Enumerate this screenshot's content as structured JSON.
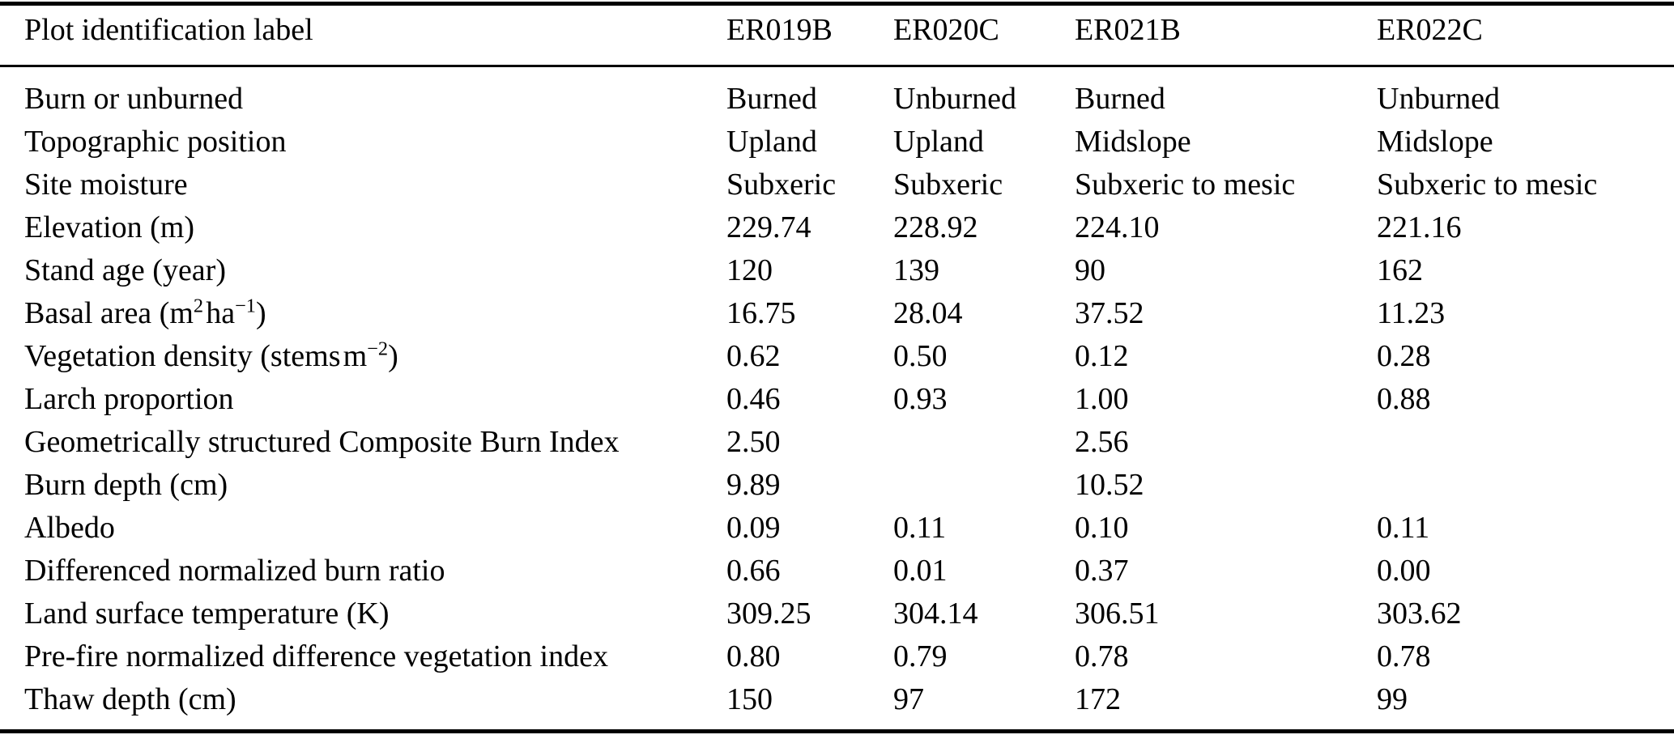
{
  "colors": {
    "background": "#ffffff",
    "text": "#000000",
    "rule": "#000000"
  },
  "table": {
    "header": {
      "label": "Plot identification label",
      "columns": [
        "ER019B",
        "ER020C",
        "ER021B",
        "ER022C"
      ]
    },
    "rows": [
      {
        "label": "Burn or unburned",
        "values": [
          "Burned",
          "Unburned",
          "Burned",
          "Unburned"
        ]
      },
      {
        "label": "Topographic position",
        "values": [
          "Upland",
          "Upland",
          "Midslope",
          "Midslope"
        ]
      },
      {
        "label": "Site moisture",
        "values": [
          "Subxeric",
          "Subxeric",
          "Subxeric to mesic",
          "Subxeric to mesic"
        ]
      },
      {
        "label": "Elevation (m)",
        "values": [
          "229.74",
          "228.92",
          "224.10",
          "221.16"
        ]
      },
      {
        "label": "Stand age (year)",
        "values": [
          "120",
          "139",
          "90",
          "162"
        ]
      },
      {
        "label": "Basal area (m2 ha-1)",
        "label_html": "Basal area (m<sup>2</sup>&#8202;ha<sup>&#8722;1</sup>)",
        "values": [
          "16.75",
          "28.04",
          "37.52",
          "11.23"
        ]
      },
      {
        "label": "Vegetation density (stems m-2)",
        "label_html": "Vegetation density (stems&#8202;m<sup>&#8722;2</sup>)",
        "values": [
          "0.62",
          "0.50",
          "0.12",
          "0.28"
        ]
      },
      {
        "label": "Larch proportion",
        "values": [
          "0.46",
          "0.93",
          "1.00",
          "0.88"
        ]
      },
      {
        "label": "Geometrically structured Composite Burn Index",
        "values": [
          "2.50",
          "",
          "2.56",
          ""
        ]
      },
      {
        "label": "Burn depth (cm)",
        "values": [
          "9.89",
          "",
          "10.52",
          ""
        ]
      },
      {
        "label": "Albedo",
        "values": [
          "0.09",
          "0.11",
          "0.10",
          "0.11"
        ]
      },
      {
        "label": "Differenced normalized burn ratio",
        "values": [
          "0.66",
          "0.01",
          "0.37",
          "0.00"
        ]
      },
      {
        "label": "Land surface temperature (K)",
        "values": [
          "309.25",
          "304.14",
          "306.51",
          "303.62"
        ]
      },
      {
        "label": "Pre-fire normalized difference vegetation index",
        "values": [
          "0.80",
          "0.79",
          "0.78",
          "0.78"
        ]
      },
      {
        "label": "Thaw depth (cm)",
        "values": [
          "150",
          "97",
          "172",
          "99"
        ]
      }
    ]
  }
}
